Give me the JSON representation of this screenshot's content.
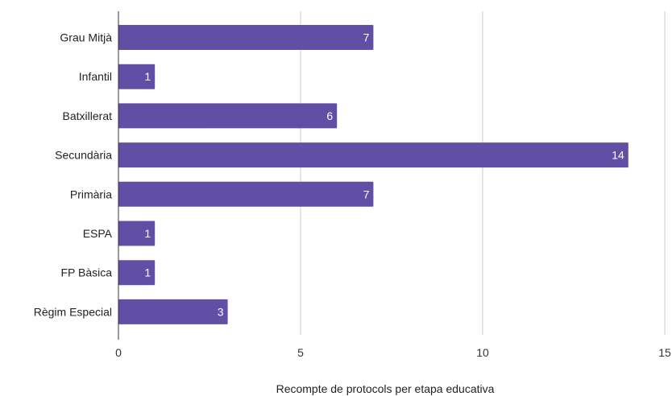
{
  "chart_data": {
    "type": "bar",
    "orientation": "horizontal",
    "categories": [
      "Grau Mitjà",
      "Infantil",
      "Batxillerat",
      "Secundària",
      "Primària",
      "ESPA",
      "FP Bàsica",
      "Règim Especial"
    ],
    "values": [
      7,
      1,
      6,
      14,
      7,
      1,
      1,
      3
    ],
    "value_labels": [
      "7",
      "1",
      "6",
      "14",
      "7",
      "1",
      "1",
      "3"
    ],
    "xlabel": "Recompte de protocols per etapa educativa",
    "ylabel": "",
    "xlim": [
      0,
      15
    ],
    "x_ticks": [
      "0",
      "5",
      "10",
      "15"
    ],
    "grid": "vertical",
    "legend": "none",
    "bar_color": "#614fa5",
    "grid_color": "#cccccc",
    "axis_color": "#333333"
  }
}
